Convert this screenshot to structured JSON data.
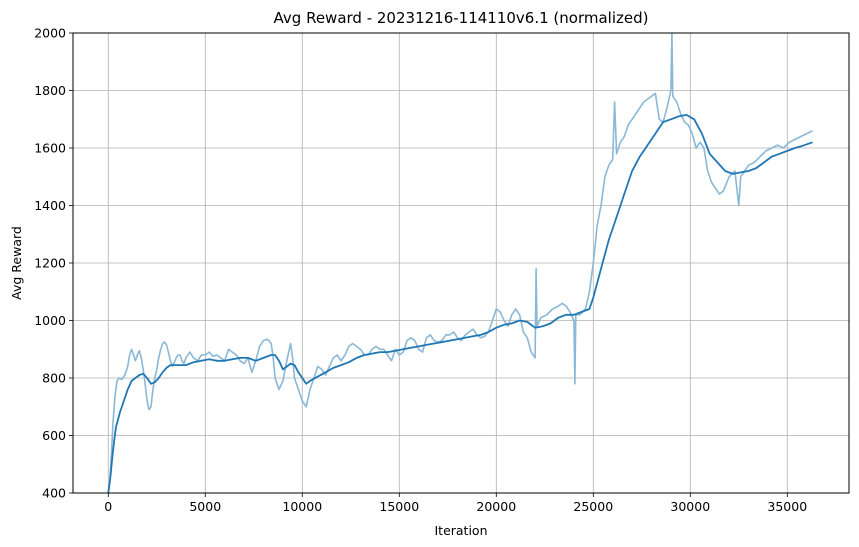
{
  "chart_data": {
    "type": "line",
    "title": "Avg Reward - 20231216-114110v6.1 (normalized)",
    "xlabel": "Iteration",
    "ylabel": "Avg Reward",
    "xlim": [
      -1818,
      38181
    ],
    "ylim": [
      400,
      2000
    ],
    "xticks": [
      0,
      5000,
      10000,
      15000,
      20000,
      25000,
      30000,
      35000
    ],
    "yticks": [
      400,
      600,
      800,
      1000,
      1200,
      1400,
      1600,
      1800,
      2000
    ],
    "grid": true,
    "legend": "none",
    "series": [
      {
        "role": "raw",
        "color": "#8ab8d6",
        "points": [
          [
            0,
            400
          ],
          [
            80,
            440
          ],
          [
            150,
            520
          ],
          [
            250,
            650
          ],
          [
            350,
            740
          ],
          [
            450,
            790
          ],
          [
            550,
            800
          ],
          [
            700,
            795
          ],
          [
            850,
            810
          ],
          [
            1000,
            840
          ],
          [
            1100,
            880
          ],
          [
            1200,
            900
          ],
          [
            1300,
            880
          ],
          [
            1400,
            860
          ],
          [
            1500,
            880
          ],
          [
            1600,
            895
          ],
          [
            1700,
            870
          ],
          [
            1800,
            830
          ],
          [
            1900,
            780
          ],
          [
            2000,
            720
          ],
          [
            2100,
            690
          ],
          [
            2200,
            700
          ],
          [
            2300,
            760
          ],
          [
            2400,
            800
          ],
          [
            2500,
            830
          ],
          [
            2600,
            870
          ],
          [
            2700,
            900
          ],
          [
            2800,
            920
          ],
          [
            2900,
            925
          ],
          [
            3000,
            915
          ],
          [
            3100,
            890
          ],
          [
            3200,
            860
          ],
          [
            3300,
            840
          ],
          [
            3400,
            855
          ],
          [
            3500,
            870
          ],
          [
            3600,
            880
          ],
          [
            3700,
            880
          ],
          [
            3800,
            860
          ],
          [
            3900,
            850
          ],
          [
            4000,
            870
          ],
          [
            4200,
            890
          ],
          [
            4400,
            870
          ],
          [
            4600,
            860
          ],
          [
            4800,
            880
          ],
          [
            5000,
            880
          ],
          [
            5200,
            890
          ],
          [
            5400,
            875
          ],
          [
            5600,
            880
          ],
          [
            5800,
            870
          ],
          [
            6000,
            860
          ],
          [
            6200,
            900
          ],
          [
            6400,
            890
          ],
          [
            6600,
            880
          ],
          [
            6800,
            860
          ],
          [
            7000,
            850
          ],
          [
            7200,
            870
          ],
          [
            7400,
            820
          ],
          [
            7600,
            860
          ],
          [
            7800,
            910
          ],
          [
            8000,
            930
          ],
          [
            8200,
            935
          ],
          [
            8400,
            920
          ],
          [
            8500,
            870
          ],
          [
            8600,
            800
          ],
          [
            8800,
            760
          ],
          [
            9000,
            790
          ],
          [
            9200,
            860
          ],
          [
            9400,
            920
          ],
          [
            9500,
            870
          ],
          [
            9600,
            800
          ],
          [
            9800,
            760
          ],
          [
            10000,
            720
          ],
          [
            10200,
            700
          ],
          [
            10400,
            760
          ],
          [
            10600,
            800
          ],
          [
            10800,
            840
          ],
          [
            11000,
            830
          ],
          [
            11200,
            810
          ],
          [
            11400,
            840
          ],
          [
            11600,
            870
          ],
          [
            11800,
            880
          ],
          [
            12000,
            860
          ],
          [
            12200,
            880
          ],
          [
            12400,
            910
          ],
          [
            12600,
            920
          ],
          [
            12800,
            910
          ],
          [
            13000,
            900
          ],
          [
            13200,
            880
          ],
          [
            13400,
            880
          ],
          [
            13600,
            900
          ],
          [
            13800,
            910
          ],
          [
            14000,
            900
          ],
          [
            14200,
            900
          ],
          [
            14400,
            880
          ],
          [
            14600,
            860
          ],
          [
            14800,
            900
          ],
          [
            15000,
            880
          ],
          [
            15200,
            890
          ],
          [
            15400,
            930
          ],
          [
            15600,
            940
          ],
          [
            15800,
            930
          ],
          [
            16000,
            900
          ],
          [
            16200,
            890
          ],
          [
            16400,
            940
          ],
          [
            16600,
            950
          ],
          [
            16800,
            930
          ],
          [
            17000,
            925
          ],
          [
            17200,
            930
          ],
          [
            17400,
            950
          ],
          [
            17600,
            950
          ],
          [
            17800,
            960
          ],
          [
            18000,
            940
          ],
          [
            18200,
            930
          ],
          [
            18400,
            950
          ],
          [
            18600,
            960
          ],
          [
            18800,
            970
          ],
          [
            19000,
            950
          ],
          [
            19200,
            940
          ],
          [
            19400,
            945
          ],
          [
            19600,
            960
          ],
          [
            19800,
            1000
          ],
          [
            20000,
            1040
          ],
          [
            20200,
            1030
          ],
          [
            20400,
            1000
          ],
          [
            20600,
            980
          ],
          [
            20800,
            1020
          ],
          [
            21000,
            1040
          ],
          [
            21200,
            1020
          ],
          [
            21400,
            960
          ],
          [
            21600,
            940
          ],
          [
            21800,
            890
          ],
          [
            22000,
            870
          ],
          [
            22050,
            1180
          ],
          [
            22100,
            980
          ],
          [
            22300,
            1010
          ],
          [
            22600,
            1020
          ],
          [
            22900,
            1040
          ],
          [
            23200,
            1050
          ],
          [
            23400,
            1060
          ],
          [
            23600,
            1050
          ],
          [
            23800,
            1030
          ],
          [
            24000,
            1000
          ],
          [
            24050,
            780
          ],
          [
            24100,
            1020
          ],
          [
            24300,
            1020
          ],
          [
            24600,
            1040
          ],
          [
            24800,
            1100
          ],
          [
            25000,
            1200
          ],
          [
            25200,
            1330
          ],
          [
            25400,
            1400
          ],
          [
            25600,
            1500
          ],
          [
            25800,
            1540
          ],
          [
            26000,
            1560
          ],
          [
            26100,
            1760
          ],
          [
            26200,
            1580
          ],
          [
            26400,
            1620
          ],
          [
            26600,
            1640
          ],
          [
            26800,
            1680
          ],
          [
            27000,
            1700
          ],
          [
            27200,
            1720
          ],
          [
            27400,
            1740
          ],
          [
            27600,
            1760
          ],
          [
            27800,
            1770
          ],
          [
            28000,
            1780
          ],
          [
            28200,
            1790
          ],
          [
            28400,
            1700
          ],
          [
            28600,
            1690
          ],
          [
            28800,
            1740
          ],
          [
            29000,
            1800
          ],
          [
            29050,
            2000
          ],
          [
            29100,
            1780
          ],
          [
            29300,
            1760
          ],
          [
            29500,
            1720
          ],
          [
            29700,
            1690
          ],
          [
            29900,
            1680
          ],
          [
            30100,
            1650
          ],
          [
            30300,
            1600
          ],
          [
            30500,
            1620
          ],
          [
            30700,
            1600
          ],
          [
            30900,
            1520
          ],
          [
            31100,
            1480
          ],
          [
            31300,
            1460
          ],
          [
            31500,
            1440
          ],
          [
            31700,
            1450
          ],
          [
            32000,
            1500
          ],
          [
            32300,
            1520
          ],
          [
            32500,
            1400
          ],
          [
            32600,
            1500
          ],
          [
            32800,
            1520
          ],
          [
            33000,
            1540
          ],
          [
            33300,
            1550
          ],
          [
            33600,
            1570
          ],
          [
            33900,
            1590
          ],
          [
            34200,
            1600
          ],
          [
            34500,
            1610
          ],
          [
            34800,
            1600
          ],
          [
            35100,
            1620
          ],
          [
            35400,
            1630
          ],
          [
            35700,
            1640
          ],
          [
            36000,
            1650
          ],
          [
            36300,
            1660
          ]
        ]
      },
      {
        "role": "smoothed",
        "color": "#1f77b4",
        "points": [
          [
            0,
            400
          ],
          [
            100,
            450
          ],
          [
            200,
            520
          ],
          [
            300,
            580
          ],
          [
            400,
            630
          ],
          [
            600,
            680
          ],
          [
            800,
            720
          ],
          [
            1000,
            760
          ],
          [
            1200,
            790
          ],
          [
            1400,
            800
          ],
          [
            1600,
            810
          ],
          [
            1800,
            815
          ],
          [
            2000,
            800
          ],
          [
            2200,
            780
          ],
          [
            2400,
            785
          ],
          [
            2600,
            800
          ],
          [
            2800,
            820
          ],
          [
            3000,
            835
          ],
          [
            3200,
            845
          ],
          [
            3600,
            845
          ],
          [
            4000,
            845
          ],
          [
            4400,
            855
          ],
          [
            4800,
            860
          ],
          [
            5200,
            865
          ],
          [
            5600,
            860
          ],
          [
            6000,
            860
          ],
          [
            6400,
            865
          ],
          [
            6800,
            870
          ],
          [
            7200,
            870
          ],
          [
            7600,
            860
          ],
          [
            8000,
            870
          ],
          [
            8400,
            880
          ],
          [
            8600,
            880
          ],
          [
            8800,
            860
          ],
          [
            9000,
            830
          ],
          [
            9200,
            840
          ],
          [
            9400,
            850
          ],
          [
            9600,
            845
          ],
          [
            9800,
            820
          ],
          [
            10000,
            800
          ],
          [
            10200,
            780
          ],
          [
            10400,
            790
          ],
          [
            10800,
            805
          ],
          [
            11200,
            820
          ],
          [
            11600,
            835
          ],
          [
            12000,
            845
          ],
          [
            12400,
            855
          ],
          [
            12800,
            870
          ],
          [
            13200,
            880
          ],
          [
            13600,
            885
          ],
          [
            14000,
            890
          ],
          [
            14400,
            890
          ],
          [
            14800,
            895
          ],
          [
            15200,
            900
          ],
          [
            15600,
            905
          ],
          [
            16000,
            910
          ],
          [
            16400,
            915
          ],
          [
            16800,
            920
          ],
          [
            17200,
            925
          ],
          [
            17600,
            930
          ],
          [
            18000,
            935
          ],
          [
            18400,
            940
          ],
          [
            18800,
            945
          ],
          [
            19200,
            950
          ],
          [
            19600,
            960
          ],
          [
            20000,
            975
          ],
          [
            20400,
            985
          ],
          [
            20800,
            990
          ],
          [
            21200,
            1000
          ],
          [
            21600,
            995
          ],
          [
            22000,
            975
          ],
          [
            22400,
            980
          ],
          [
            22800,
            990
          ],
          [
            23200,
            1010
          ],
          [
            23600,
            1020
          ],
          [
            24000,
            1020
          ],
          [
            24400,
            1030
          ],
          [
            24800,
            1040
          ],
          [
            25000,
            1080
          ],
          [
            25400,
            1180
          ],
          [
            25800,
            1280
          ],
          [
            26200,
            1360
          ],
          [
            26600,
            1440
          ],
          [
            27000,
            1520
          ],
          [
            27400,
            1570
          ],
          [
            27800,
            1610
          ],
          [
            28200,
            1650
          ],
          [
            28600,
            1690
          ],
          [
            29000,
            1700
          ],
          [
            29400,
            1710
          ],
          [
            29800,
            1715
          ],
          [
            30200,
            1700
          ],
          [
            30600,
            1650
          ],
          [
            31000,
            1580
          ],
          [
            31400,
            1550
          ],
          [
            31800,
            1520
          ],
          [
            32200,
            1510
          ],
          [
            32600,
            1515
          ],
          [
            33000,
            1520
          ],
          [
            33400,
            1530
          ],
          [
            33800,
            1550
          ],
          [
            34200,
            1570
          ],
          [
            34600,
            1580
          ],
          [
            35000,
            1590
          ],
          [
            35400,
            1600
          ],
          [
            35800,
            1608
          ],
          [
            36300,
            1620
          ]
        ]
      }
    ]
  }
}
